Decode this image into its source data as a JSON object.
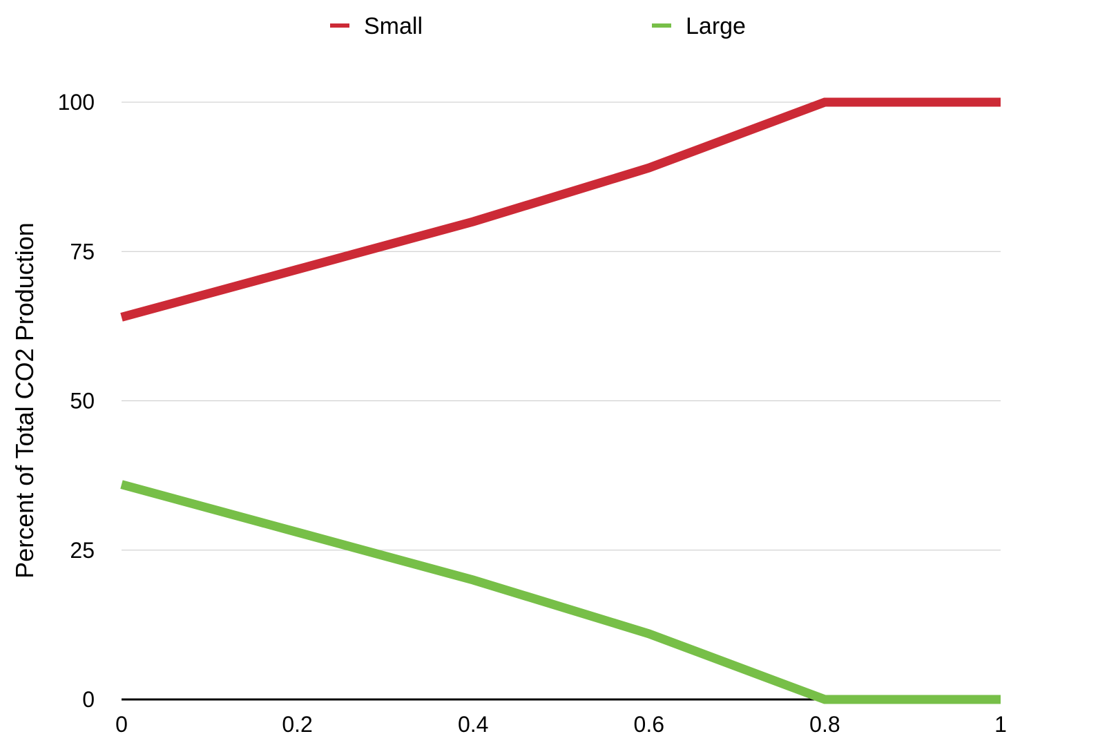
{
  "chart_data": {
    "type": "line",
    "title": "",
    "xlabel": "",
    "ylabel": "Percent of Total CO2 Production",
    "x": [
      0,
      0.2,
      0.4,
      0.6,
      0.8,
      1
    ],
    "x_tick_labels": [
      "0",
      "0.2",
      "0.4",
      "0.6",
      "0.8",
      "1"
    ],
    "y_tick_values": [
      0,
      25,
      50,
      75,
      100
    ],
    "y_tick_labels": [
      "0",
      "25",
      "50",
      "75",
      "100"
    ],
    "xlim": [
      0,
      1
    ],
    "ylim": [
      0,
      100
    ],
    "grid": "horizontal",
    "legend_position": "top-center",
    "series": [
      {
        "name": "Small",
        "color": "#cc2a36",
        "values": [
          64,
          72,
          80,
          89,
          100,
          100
        ]
      },
      {
        "name": "Large",
        "color": "#77bf48",
        "values": [
          36,
          28,
          20,
          11,
          0,
          0
        ]
      }
    ]
  }
}
